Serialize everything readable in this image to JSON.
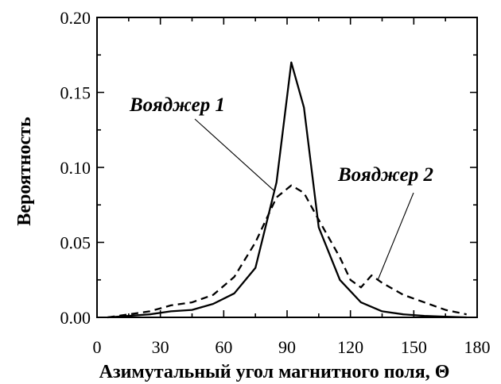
{
  "chart_data": {
    "type": "line",
    "xlabel": "Азимутальный угол магнитного поля, Θ",
    "ylabel": "Вероятность",
    "xlim": [
      0,
      180
    ],
    "ylim": [
      0,
      0.2
    ],
    "xticks": [
      "0",
      "30",
      "60",
      "90",
      "120",
      "150",
      "180"
    ],
    "yticks": [
      "0.00",
      "0.05",
      "0.10",
      "0.15",
      "0.20"
    ],
    "grid": false,
    "series": [
      {
        "name": "Вояджер 1",
        "line_style": "solid",
        "x": [
          5,
          15,
          25,
          35,
          45,
          55,
          65,
          75,
          85,
          92,
          98,
          105,
          115,
          125,
          135,
          145,
          155,
          165,
          175
        ],
        "values": [
          0.0,
          0.001,
          0.002,
          0.004,
          0.005,
          0.009,
          0.016,
          0.033,
          0.09,
          0.17,
          0.14,
          0.06,
          0.025,
          0.01,
          0.004,
          0.002,
          0.001,
          0.0005,
          0.0
        ]
      },
      {
        "name": "Вояджер 2",
        "line_style": "dashed",
        "x": [
          5,
          15,
          25,
          35,
          45,
          55,
          65,
          75,
          85,
          92,
          98,
          105,
          115,
          120,
          125,
          130,
          135,
          145,
          155,
          165,
          175
        ],
        "values": [
          0.0,
          0.002,
          0.004,
          0.008,
          0.01,
          0.015,
          0.027,
          0.05,
          0.08,
          0.088,
          0.083,
          0.065,
          0.04,
          0.025,
          0.02,
          0.028,
          0.023,
          0.015,
          0.01,
          0.005,
          0.002
        ]
      }
    ],
    "annotations": [
      {
        "text": "Вояджер 1",
        "target_series": 0,
        "target_x": 84
      },
      {
        "text": "Вояджер 2",
        "target_series": 1,
        "target_x": 133
      }
    ]
  }
}
